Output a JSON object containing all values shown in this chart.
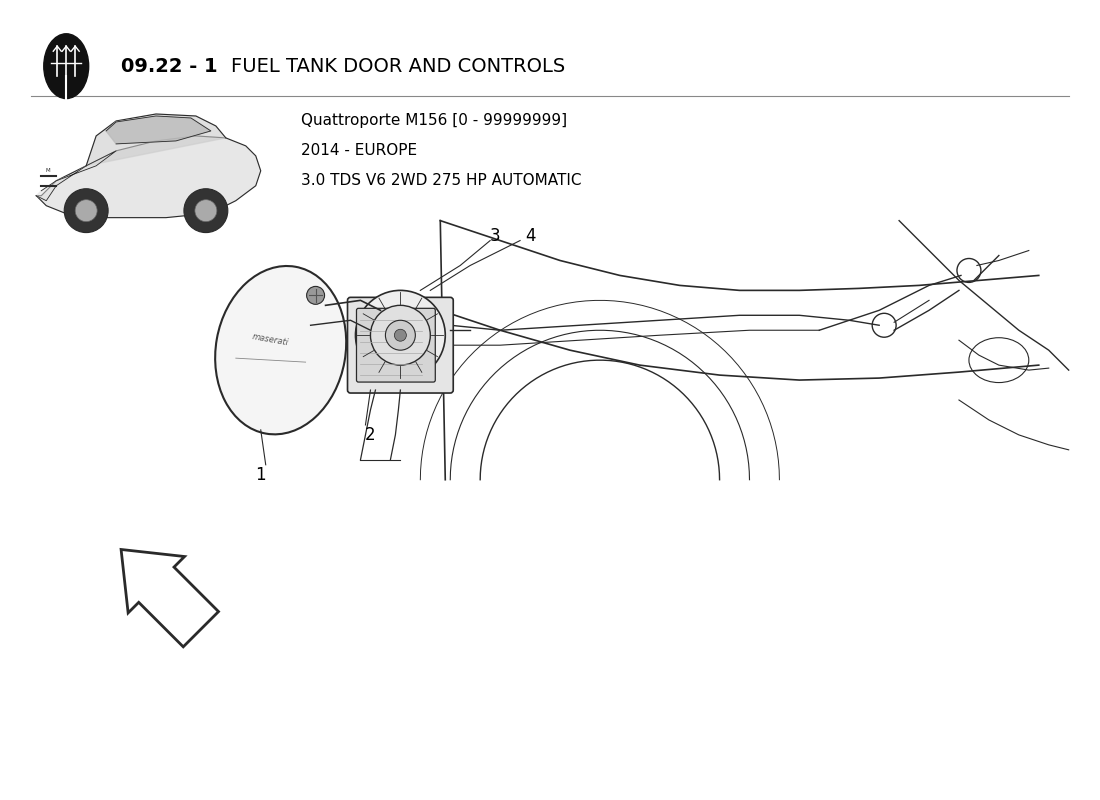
{
  "title_number": "09.22 - 1",
  "title_text": "FUEL TANK DOOR AND CONTROLS",
  "subtitle_line1": "Quattroporte M156 [0 - 99999999]",
  "subtitle_line2": "2014 - EUROPE",
  "subtitle_line3": "3.0 TDS V6 2WD 275 HP AUTOMATIC",
  "bg_color": "#ffffff",
  "line_color": "#2a2a2a",
  "text_color": "#000000",
  "fig_width": 11.0,
  "fig_height": 8.0
}
